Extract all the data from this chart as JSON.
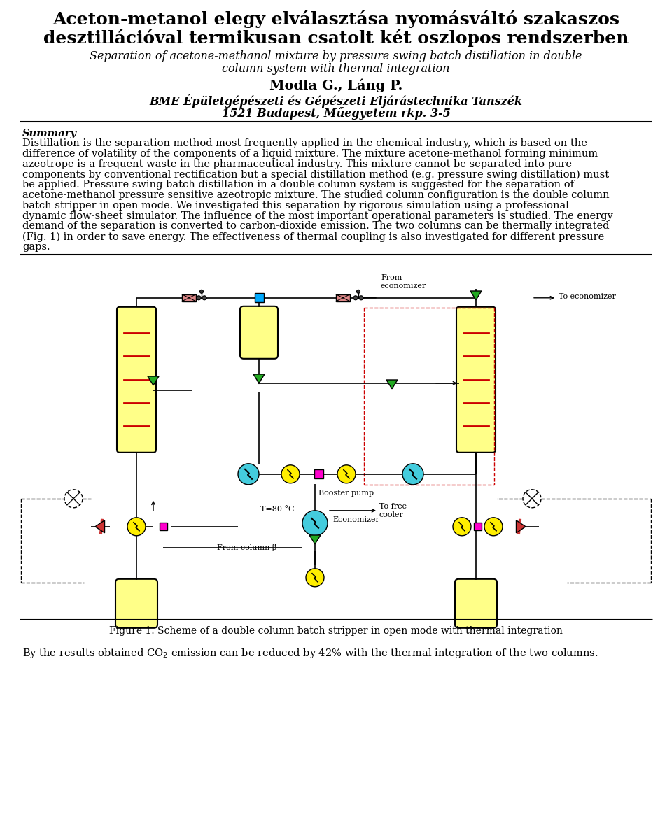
{
  "title_line1": "Aceton-metanol elegy elválasztása nyomásváltó szakaszos",
  "title_line2": "desztillációval termikusan csatolt két oszlopos rendszerben",
  "subtitle_line1": "Separation of acetone-methanol mixture by pressure swing batch distillation in double",
  "subtitle_line2": "column system with thermal integration",
  "authors": "Modla G., Láng P.",
  "affiliation1": "BME Épületgépészeti és Gépészeti Eljárástechnika Tanszék",
  "affiliation2": "1521 Budapest, Műegyetem rkp. 3-5",
  "summary_header": "Summary",
  "summary_text": "Distillation is the separation method most frequently applied in the chemical industry, which is based on the\ndifference of volatility of the components of a liquid mixture. The mixture acetone-methanol forming minimum\nazeotrope is a frequent waste in the pharmaceutical industry. This mixture cannot be separated into pure\ncomponents by conventional rectification but a special distillation method (e.g. pressure swing distillation) must\nbe applied. Pressure swing batch distillation in a double column system is suggested for the separation of\nacetone-methanol pressure sensitive azeotropic mixture. The studied column configuration is the double column\nbatch stripper in open mode. We investigated this separation by rigorous simulation using a professional\ndynamic flow-sheet simulator. The influence of the most important operational parameters is studied. The energy\ndemand of the separation is converted to carbon-dioxide emission. The two columns can be thermally integrated\n(Fig. 1) in order to save energy. The effectiveness of thermal coupling is also investigated for different pressure\ngaps.",
  "figure_caption": "Figure 1. Scheme of a double column batch stripper in open mode with thermal integration",
  "bottom_text": "By the results obtained CO₂ emission can be reduced by 42% with the thermal integration of the two columns.",
  "bg_color": "#ffffff",
  "text_color": "#000000"
}
